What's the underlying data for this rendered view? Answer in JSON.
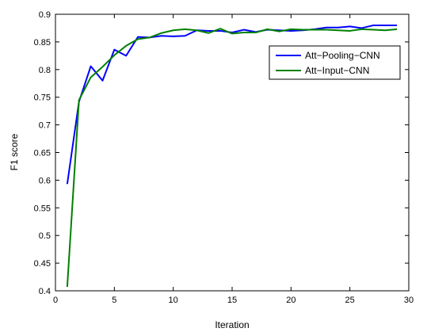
{
  "chart_data": {
    "type": "line",
    "xlabel": "Iteration",
    "ylabel": "F1 score",
    "xlim": [
      0,
      30
    ],
    "ylim": [
      0.4,
      0.9
    ],
    "xticks": [
      0,
      5,
      10,
      15,
      20,
      25,
      30
    ],
    "yticks": [
      0.4,
      0.45,
      0.5,
      0.55,
      0.6,
      0.65,
      0.7,
      0.75,
      0.8,
      0.85,
      0.9
    ],
    "xtick_labels": [
      "0",
      "5",
      "10",
      "15",
      "20",
      "25",
      "30"
    ],
    "ytick_labels": [
      "0.4",
      "0.45",
      "0.5",
      "0.55",
      "0.6",
      "0.65",
      "0.7",
      "0.75",
      "0.8",
      "0.85",
      "0.9"
    ],
    "grid": false,
    "legend_position": "top-right",
    "series": [
      {
        "name": "Att−Pooling−CNN",
        "color": "#0000ff",
        "x": [
          1,
          2,
          3,
          4,
          5,
          6,
          7,
          8,
          9,
          10,
          11,
          12,
          13,
          14,
          15,
          16,
          17,
          18,
          19,
          20,
          21,
          22,
          23,
          24,
          25,
          26,
          27,
          28,
          29
        ],
        "y": [
          0.593,
          0.742,
          0.806,
          0.78,
          0.836,
          0.825,
          0.859,
          0.858,
          0.861,
          0.86,
          0.861,
          0.871,
          0.87,
          0.87,
          0.867,
          0.872,
          0.868,
          0.872,
          0.871,
          0.87,
          0.871,
          0.873,
          0.876,
          0.876,
          0.878,
          0.875,
          0.88,
          0.88,
          0.88
        ]
      },
      {
        "name": "Att−Input−CNN",
        "color": "#008000",
        "x": [
          1,
          2,
          3,
          4,
          5,
          6,
          7,
          8,
          9,
          10,
          11,
          12,
          13,
          14,
          15,
          16,
          17,
          18,
          19,
          20,
          21,
          22,
          23,
          24,
          25,
          26,
          27,
          28,
          29
        ],
        "y": [
          0.407,
          0.745,
          0.786,
          0.805,
          0.826,
          0.843,
          0.855,
          0.858,
          0.866,
          0.871,
          0.873,
          0.871,
          0.866,
          0.874,
          0.865,
          0.867,
          0.867,
          0.873,
          0.869,
          0.873,
          0.872,
          0.872,
          0.872,
          0.871,
          0.87,
          0.873,
          0.872,
          0.871,
          0.873
        ]
      }
    ]
  }
}
